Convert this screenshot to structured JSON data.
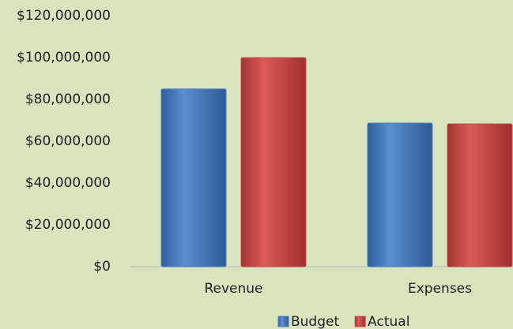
{
  "chart_data": {
    "type": "bar",
    "categories": [
      "Revenue",
      "Expenses"
    ],
    "series": [
      {
        "name": "Budget",
        "color": "#4f81bd",
        "values": [
          85000000,
          68700000
        ]
      },
      {
        "name": "Actual",
        "color": "#c0504d",
        "values": [
          100000000,
          68300000
        ]
      }
    ],
    "ylim": [
      0,
      120000000
    ],
    "yticks": [
      {
        "value": 0,
        "label": "$0"
      },
      {
        "value": 20000000,
        "label": "$20,000,000"
      },
      {
        "value": 40000000,
        "label": "$40,000,000"
      },
      {
        "value": 60000000,
        "label": "$60,000,000"
      },
      {
        "value": 80000000,
        "label": "$80,000,000"
      },
      {
        "value": 100000000,
        "label": "$100,000,000"
      },
      {
        "value": 120000000,
        "label": "$120,000,000"
      }
    ],
    "grid": false,
    "legend": "bottom"
  }
}
